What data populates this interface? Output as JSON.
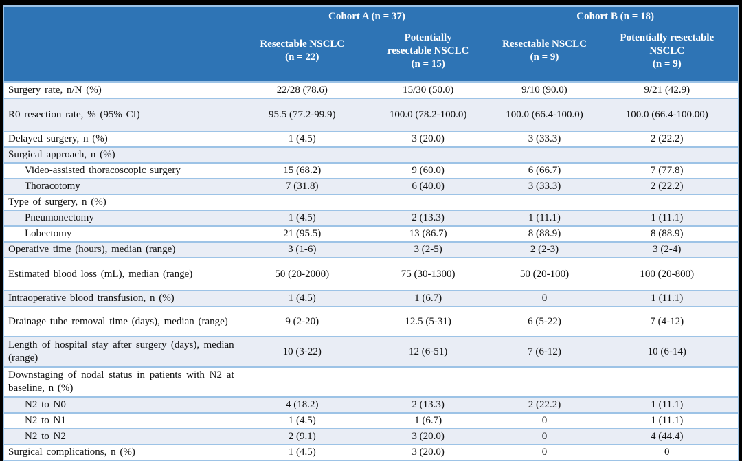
{
  "colors": {
    "header_bg": "#2E74B5",
    "header_text": "#FFFFFF",
    "band_row_bg": "#E9EDF5",
    "row_border": "#9DC3E6",
    "frame_bg": "#000000",
    "body_text": "#111111"
  },
  "table": {
    "header": {
      "cohort_a": "Cohort A (n = 37)",
      "cohort_b": "Cohort B (n = 18)",
      "subheaders": [
        "Resectable NSCLC\n(n = 22)",
        "Potentially\nresectable NSCLC\n(n = 15)",
        "Resectable NSCLC\n(n = 9)",
        "Potentially resectable\nNSCLC\n(n = 9)"
      ]
    },
    "rows": [
      {
        "label": "Surgery rate, n/N (%)",
        "values": [
          "22/28 (78.6)",
          "15/30 (50.0)",
          "9/10 (90.0)",
          "9/21 (42.9)"
        ]
      },
      {
        "label": "R0 resection rate, % (95% CI)",
        "values": [
          "95.5 (77.2-99.9)",
          "100.0 (78.2-100.0)",
          "100.0 (66.4-100.0)",
          "100.0 (66.4-100.00)"
        ]
      },
      {
        "label": "Delayed surgery, n (%)",
        "values": [
          "1 (4.5)",
          "3 (20.0)",
          "3 (33.3)",
          "2 (22.2)"
        ]
      },
      {
        "label": "Surgical approach, n (%)",
        "values": [
          "",
          "",
          "",
          ""
        ]
      },
      {
        "label": "Video-assisted thoracoscopic surgery",
        "values": [
          "15 (68.2)",
          "9 (60.0)",
          "6 (66.7)",
          "7 (77.8)"
        ]
      },
      {
        "label": "Thoracotomy",
        "values": [
          "7 (31.8)",
          "6 (40.0)",
          "3 (33.3)",
          "2 (22.2)"
        ]
      },
      {
        "label": "Type of surgery, n (%)",
        "values": [
          "",
          "",
          "",
          ""
        ]
      },
      {
        "label": "Pneumonectomy",
        "values": [
          "1 (4.5)",
          "2 (13.3)",
          "1 (11.1)",
          "1 (11.1)"
        ]
      },
      {
        "label": "Lobectomy",
        "values": [
          "21 (95.5)",
          "13 (86.7)",
          "8 (88.9)",
          "8 (88.9)"
        ]
      },
      {
        "label": "Operative time (hours), median (range)",
        "values": [
          "3 (1-6)",
          "3 (2-5)",
          "2 (2-3)",
          "3 (2-4)"
        ]
      },
      {
        "label": "Estimated blood loss (mL), median (range)",
        "values": [
          "50 (20-2000)",
          "75 (30-1300)",
          "50 (20-100)",
          "100 (20-800)"
        ]
      },
      {
        "label": "Intraoperative blood transfusion, n (%)",
        "values": [
          "1 (4.5)",
          "1 (6.7)",
          "0",
          "1 (11.1)"
        ]
      },
      {
        "label": "Drainage tube removal time (days), median (range)",
        "values": [
          "9 (2-20)",
          "12.5 (5-31)",
          "6 (5-22)",
          "7 (4-12)"
        ]
      },
      {
        "label": "Length of hospital stay after surgery (days), median (range)",
        "values": [
          "10 (3-22)",
          "12 (6-51)",
          "7 (6-12)",
          "10 (6-14)"
        ]
      },
      {
        "label": "Downstaging of nodal status in patients with N2 at baseline, n (%)",
        "values": [
          "",
          "",
          "",
          ""
        ]
      },
      {
        "label": "N2 to N0",
        "values": [
          "4 (18.2)",
          "2 (13.3)",
          "2 (22.2)",
          "1 (11.1)"
        ]
      },
      {
        "label": "N2 to N1",
        "values": [
          "1 (4.5)",
          "1 (6.7)",
          "0",
          "1 (11.1)"
        ]
      },
      {
        "label": "N2 to N2",
        "values": [
          "2 (9.1)",
          "3 (20.0)",
          "0",
          "4 (44.4)"
        ]
      },
      {
        "label": "Surgical complications, n (%)",
        "values": [
          "1 (4.5)",
          "3 (20.0)",
          "0",
          "0"
        ]
      }
    ]
  }
}
